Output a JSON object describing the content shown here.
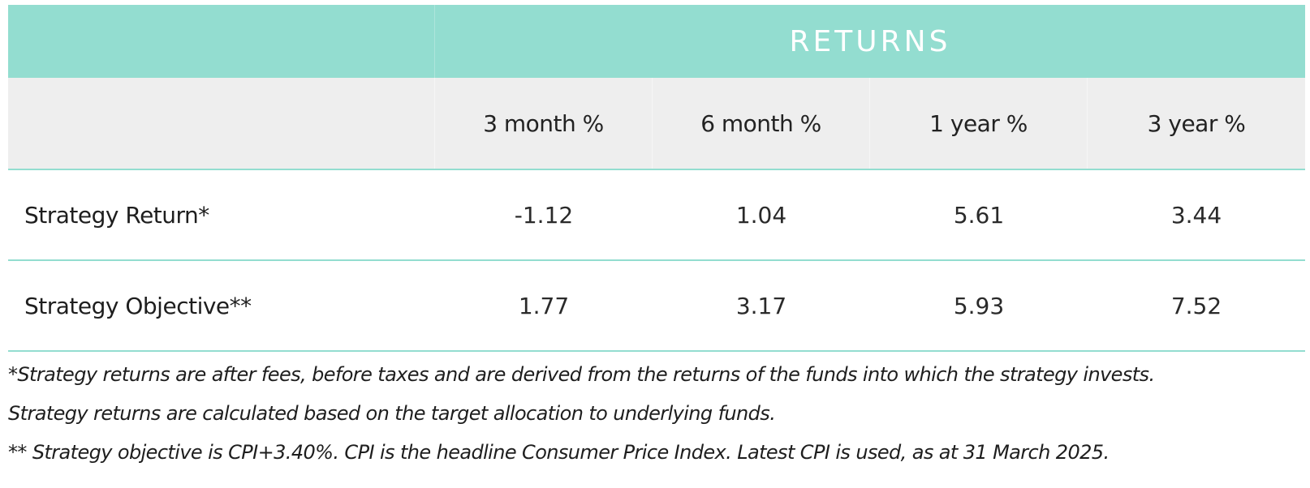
{
  "table": {
    "title": "RETURNS",
    "columns": [
      "3 month %",
      "6 month %",
      "1 year %",
      "3 year %"
    ],
    "rows": [
      {
        "label": "Strategy Return*",
        "values": [
          "-1.12",
          "1.04",
          "5.61",
          "3.44"
        ]
      },
      {
        "label": "Strategy Objective**",
        "values": [
          "1.77",
          "3.17",
          "5.93",
          "7.52"
        ]
      }
    ]
  },
  "notes": [
    "*Strategy returns are after fees, before taxes and are derived from the returns of the funds into which the strategy invests.",
    "Strategy returns are calculated based on the target allocation to underlying funds.",
    "** Strategy objective is CPI+3.40%. CPI is the headline Consumer Price Index. Latest CPI is used, as at 31 March 2025."
  ],
  "colors": {
    "accent": "#93ddd0",
    "header_bg": "#eeeeee"
  }
}
